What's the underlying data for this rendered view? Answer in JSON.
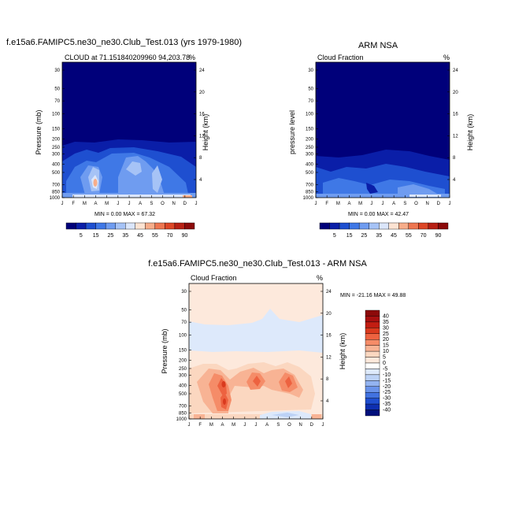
{
  "chart_data": [
    {
      "type": "heatmap",
      "title": "f.e15a6.FAMIPC5.ne30_ne30.Club_Test.013 (yrs 1979-1980)",
      "subtitle_left": "CLOUD at 71.151840209960 94,203.78",
      "subtitle_right": "%",
      "ylabel": "Pressure (mb)",
      "ylabel_right": "Height (km)",
      "stats": "MIN =   0.00 MAX =  67.32",
      "x_ticks": [
        "J",
        "F",
        "M",
        "A",
        "M",
        "J",
        "J",
        "A",
        "S",
        "O",
        "N",
        "D",
        "J"
      ],
      "y_ticks": [
        "30",
        "50",
        "70",
        "100",
        "150",
        "200",
        "250",
        "300",
        "400",
        "500",
        "700",
        "850",
        "1000"
      ],
      "y2_ticks": [
        "24",
        "20",
        "16",
        "12",
        "8",
        "4"
      ],
      "colorbar_labels": [
        "5",
        "15",
        "25",
        "35",
        "45",
        "55",
        "70",
        "90"
      ],
      "min": 0.0,
      "max": 67.32
    },
    {
      "type": "heatmap",
      "title": "ARM NSA",
      "subtitle_left": "Cloud Fraction",
      "subtitle_right": "%",
      "ylabel": "pressure level",
      "ylabel_right": "Height (km)",
      "stats": "MIN =   0.00 MAX =  42.47",
      "x_ticks": [
        "J",
        "F",
        "M",
        "A",
        "M",
        "J",
        "J",
        "A",
        "S",
        "O",
        "N",
        "D",
        "J"
      ],
      "y_ticks": [
        "30",
        "50",
        "70",
        "100",
        "150",
        "200",
        "250",
        "300",
        "400",
        "500",
        "700",
        "850",
        "1000"
      ],
      "y2_ticks": [
        "24",
        "20",
        "16",
        "12",
        "8",
        "4"
      ],
      "colorbar_labels": [
        "5",
        "15",
        "25",
        "35",
        "45",
        "55",
        "70",
        "90"
      ],
      "min": 0.0,
      "max": 42.47
    },
    {
      "type": "heatmap",
      "title": "f.e15a6.FAMIPC5.ne30_ne30.Club_Test.013 - ARM NSA",
      "subtitle_left": "Cloud Fraction",
      "subtitle_right": "%",
      "ylabel": "Pressure (mb)",
      "ylabel_right": "Height (km)",
      "stats": "MIN = -21.16 MAX =  49.88",
      "x_ticks": [
        "J",
        "F",
        "M",
        "A",
        "M",
        "J",
        "J",
        "A",
        "S",
        "O",
        "N",
        "D",
        "J"
      ],
      "y_ticks": [
        "30",
        "50",
        "70",
        "100",
        "150",
        "200",
        "250",
        "300",
        "400",
        "500",
        "700",
        "850",
        "1000"
      ],
      "y2_ticks": [
        "24",
        "20",
        "16",
        "12",
        "8",
        "4"
      ],
      "colorbar_labels": [
        "40",
        "35",
        "30",
        "25",
        "20",
        "15",
        "10",
        "5",
        "0",
        "-5",
        "-10",
        "-15",
        "-20",
        "-25",
        "-30",
        "-35",
        "-40"
      ],
      "min": -21.16,
      "max": 49.88
    }
  ],
  "colors": {
    "seq_scale": [
      "#00007a",
      "#0a1ea8",
      "#1e4fd0",
      "#3f78e6",
      "#6f9cf0",
      "#a6c3f6",
      "#dbe6fb",
      "#fde3d2",
      "#f7ad8a",
      "#ee7650",
      "#dd4626",
      "#b82014",
      "#8c0a0a"
    ],
    "div_scale": [
      "#8c0a0a",
      "#a81010",
      "#c21d12",
      "#da3a1e",
      "#ed6240",
      "#f58c68",
      "#f8b394",
      "#fbd7c0",
      "#fde9dc",
      "#ffffff",
      "#dde9fb",
      "#bcd2f6",
      "#93b3f0",
      "#6a93ea",
      "#4272e0",
      "#1f4ecf",
      "#0d2fb0",
      "#00107c"
    ]
  }
}
